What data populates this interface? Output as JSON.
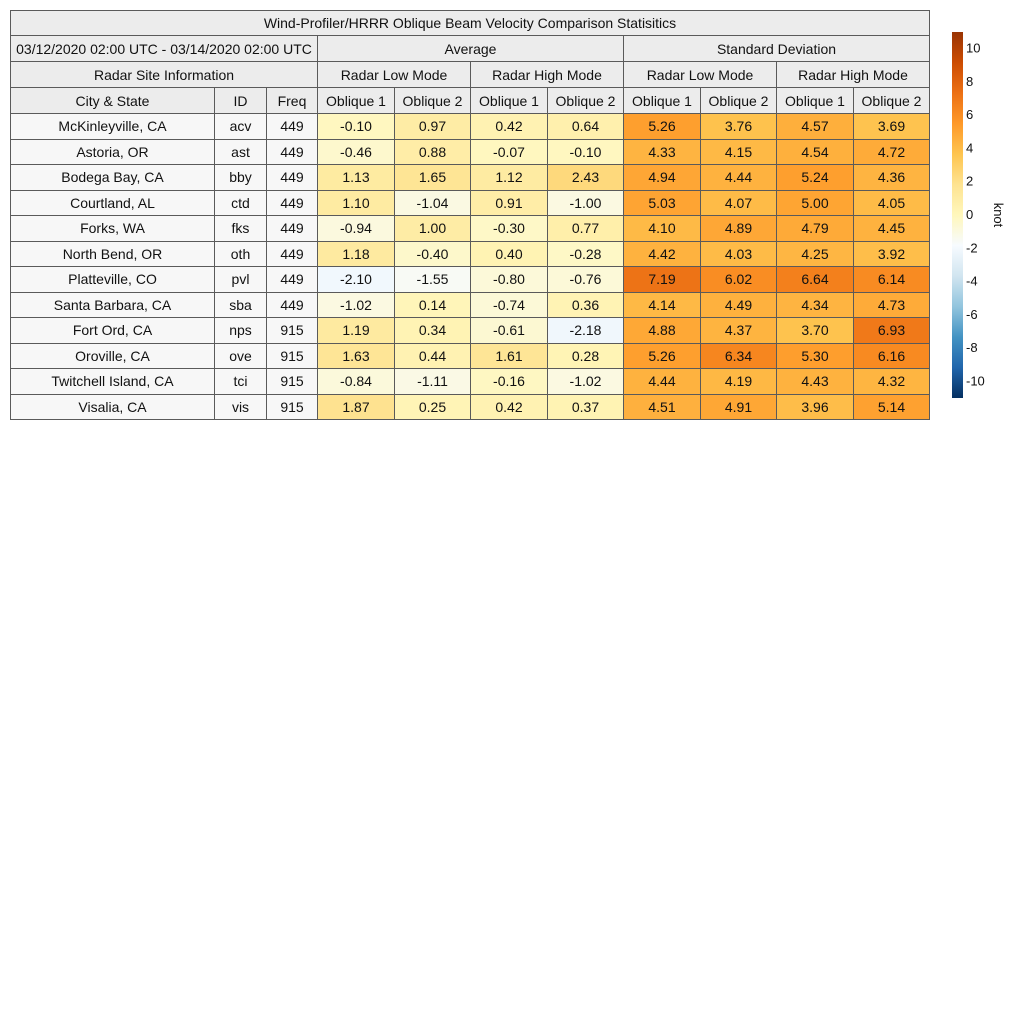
{
  "chart_data": {
    "type": "table",
    "title": "Wind-Profiler/HRRR Oblique Beam Velocity Comparison Statisitics",
    "date_range": "03/12/2020 02:00 UTC - 03/14/2020 02:00 UTC",
    "groups": {
      "average": "Average",
      "std": "Standard Deviation"
    },
    "site_info_label": "Radar Site Information",
    "modes": [
      "Radar Low Mode",
      "Radar High Mode",
      "Radar Low Mode",
      "Radar High Mode"
    ],
    "columns": [
      "City & State",
      "ID",
      "Freq",
      "Oblique 1",
      "Oblique 2",
      "Oblique 1",
      "Oblique 2",
      "Oblique 1",
      "Oblique 2",
      "Oblique 1",
      "Oblique 2"
    ],
    "rows": [
      {
        "city": "McKinleyville, CA",
        "id": "acv",
        "freq": "449",
        "values": [
          "-0.10",
          "0.97",
          "0.42",
          "0.64",
          "5.26",
          "3.76",
          "4.57",
          "3.69"
        ]
      },
      {
        "city": "Astoria, OR",
        "id": "ast",
        "freq": "449",
        "values": [
          "-0.46",
          "0.88",
          "-0.07",
          "-0.10",
          "4.33",
          "4.15",
          "4.54",
          "4.72"
        ]
      },
      {
        "city": "Bodega Bay, CA",
        "id": "bby",
        "freq": "449",
        "values": [
          "1.13",
          "1.65",
          "1.12",
          "2.43",
          "4.94",
          "4.44",
          "5.24",
          "4.36"
        ]
      },
      {
        "city": "Courtland, AL",
        "id": "ctd",
        "freq": "449",
        "values": [
          "1.10",
          "-1.04",
          "0.91",
          "-1.00",
          "5.03",
          "4.07",
          "5.00",
          "4.05"
        ]
      },
      {
        "city": "Forks, WA",
        "id": "fks",
        "freq": "449",
        "values": [
          "-0.94",
          "1.00",
          "-0.30",
          "0.77",
          "4.10",
          "4.89",
          "4.79",
          "4.45"
        ]
      },
      {
        "city": "North Bend, OR",
        "id": "oth",
        "freq": "449",
        "values": [
          "1.18",
          "-0.40",
          "0.40",
          "-0.28",
          "4.42",
          "4.03",
          "4.25",
          "3.92"
        ]
      },
      {
        "city": "Platteville, CO",
        "id": "pvl",
        "freq": "449",
        "values": [
          "-2.10",
          "-1.55",
          "-0.80",
          "-0.76",
          "7.19",
          "6.02",
          "6.64",
          "6.14"
        ]
      },
      {
        "city": "Santa Barbara, CA",
        "id": "sba",
        "freq": "449",
        "values": [
          "-1.02",
          "0.14",
          "-0.74",
          "0.36",
          "4.14",
          "4.49",
          "4.34",
          "4.73"
        ]
      },
      {
        "city": "Fort Ord, CA",
        "id": "nps",
        "freq": "915",
        "values": [
          "1.19",
          "0.34",
          "-0.61",
          "-2.18",
          "4.88",
          "4.37",
          "3.70",
          "6.93"
        ]
      },
      {
        "city": "Oroville, CA",
        "id": "ove",
        "freq": "915",
        "values": [
          "1.63",
          "0.44",
          "1.61",
          "0.28",
          "5.26",
          "6.34",
          "5.30",
          "6.16"
        ]
      },
      {
        "city": "Twitchell Island, CA",
        "id": "tci",
        "freq": "915",
        "values": [
          "-0.84",
          "-1.11",
          "-0.16",
          "-1.02",
          "4.44",
          "4.19",
          "4.43",
          "4.32"
        ]
      },
      {
        "city": "Visalia, CA",
        "id": "vis",
        "freq": "915",
        "values": [
          "1.87",
          "0.25",
          "0.42",
          "0.37",
          "4.51",
          "4.91",
          "3.96",
          "5.14"
        ]
      }
    ],
    "colorbar": {
      "label": "knot",
      "range": [
        -11,
        11
      ],
      "ticks": [
        10,
        8,
        6,
        4,
        2,
        0,
        -2,
        -4,
        -6,
        -8,
        -10
      ],
      "colors": [
        "#053061",
        "#2166ac",
        "#4393c3",
        "#92c5de",
        "#d1e5f0",
        "#f7fbff",
        "#fff7bc",
        "#fee391",
        "#fec44f",
        "#fe9929",
        "#ec7014",
        "#cc4c02",
        "#993404"
      ]
    }
  }
}
